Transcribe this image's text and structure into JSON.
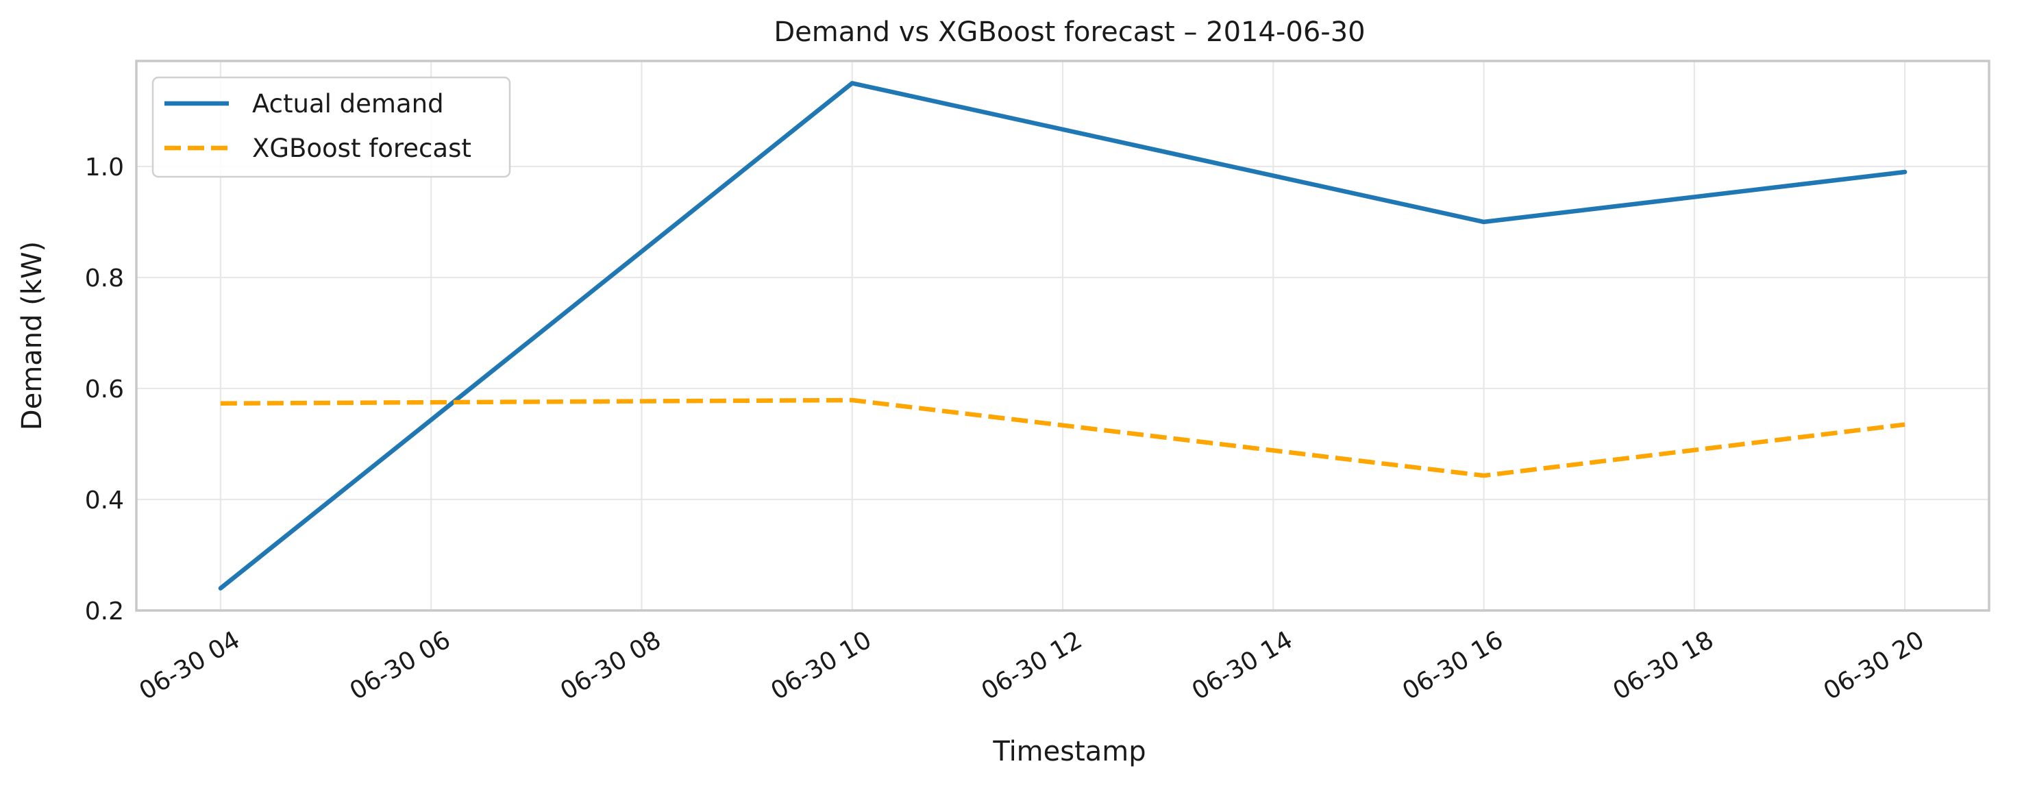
{
  "chart_data": {
    "type": "line",
    "title": "Demand vs XGBoost forecast – 2014-06-30",
    "xlabel": "Timestamp",
    "ylabel": "Demand (kW)",
    "x_tick_labels": [
      "06-30 04",
      "06-30 06",
      "06-30 08",
      "06-30 10",
      "06-30 12",
      "06-30 14",
      "06-30 16",
      "06-30 18",
      "06-30 20"
    ],
    "x_ticks": [
      "2014-06-30 04:00",
      "2014-06-30 06:00",
      "2014-06-30 08:00",
      "2014-06-30 10:00",
      "2014-06-30 12:00",
      "2014-06-30 14:00",
      "2014-06-30 16:00",
      "2014-06-30 18:00",
      "2014-06-30 20:00"
    ],
    "xlim": [
      "2014-06-30 03:12",
      "2014-06-30 20:48"
    ],
    "y_tick_labels": [
      "0.2",
      "0.4",
      "0.6",
      "0.8",
      "1.0"
    ],
    "y_ticks": [
      0.2,
      0.4,
      0.6,
      0.8,
      1.0
    ],
    "ylim": [
      0.2,
      1.19
    ],
    "grid": true,
    "legend_position": "upper-left",
    "x": [
      "2014-06-30 04:00",
      "2014-06-30 10:00",
      "2014-06-30 16:00",
      "2014-06-30 20:00"
    ],
    "series": [
      {
        "name": "Actual demand",
        "values": [
          0.24,
          1.15,
          0.9,
          0.99
        ],
        "color": "#1f77b4",
        "style": "solid"
      },
      {
        "name": "XGBoost forecast",
        "values": [
          0.573,
          0.579,
          0.443,
          0.535
        ],
        "color": "#ffa500",
        "style": "dashed"
      }
    ]
  }
}
